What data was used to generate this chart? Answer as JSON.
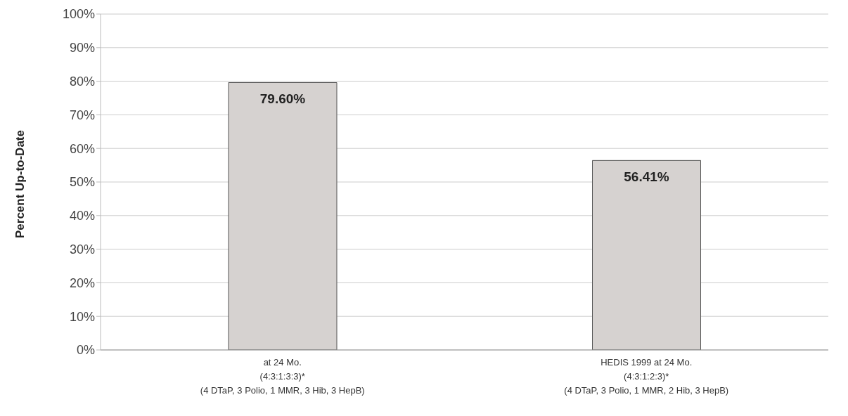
{
  "chart_data": {
    "type": "bar",
    "ylabel": "Percent Up-to-Date",
    "categories": [
      "at 24 Mo.\n(4:3:1:3:3)*\n(4 DTaP, 3 Polio, 1 MMR, 3 Hib, 3 HepB)",
      "HEDIS 1999 at 24 Mo.\n(4:3:1:2:3)*\n(4 DTaP, 3 Polio, 1 MMR, 2 Hib, 3 HepB)"
    ],
    "values": [
      79.6,
      56.41
    ],
    "value_labels": [
      "79.60%",
      "56.41%"
    ],
    "color": "#d6d2d0",
    "ylim": [
      0,
      100
    ],
    "yticks": [
      {
        "value": 0,
        "label": "0%"
      },
      {
        "value": 10,
        "label": "10%"
      },
      {
        "value": 20,
        "label": "20%"
      },
      {
        "value": 30,
        "label": "30%"
      },
      {
        "value": 40,
        "label": "40%"
      },
      {
        "value": 50,
        "label": "50%"
      },
      {
        "value": 60,
        "label": "60%"
      },
      {
        "value": 70,
        "label": "70%"
      },
      {
        "value": 80,
        "label": "80%"
      },
      {
        "value": 90,
        "label": "90%"
      },
      {
        "value": 100,
        "label": "100%"
      }
    ],
    "grid": "y",
    "legend": false
  }
}
